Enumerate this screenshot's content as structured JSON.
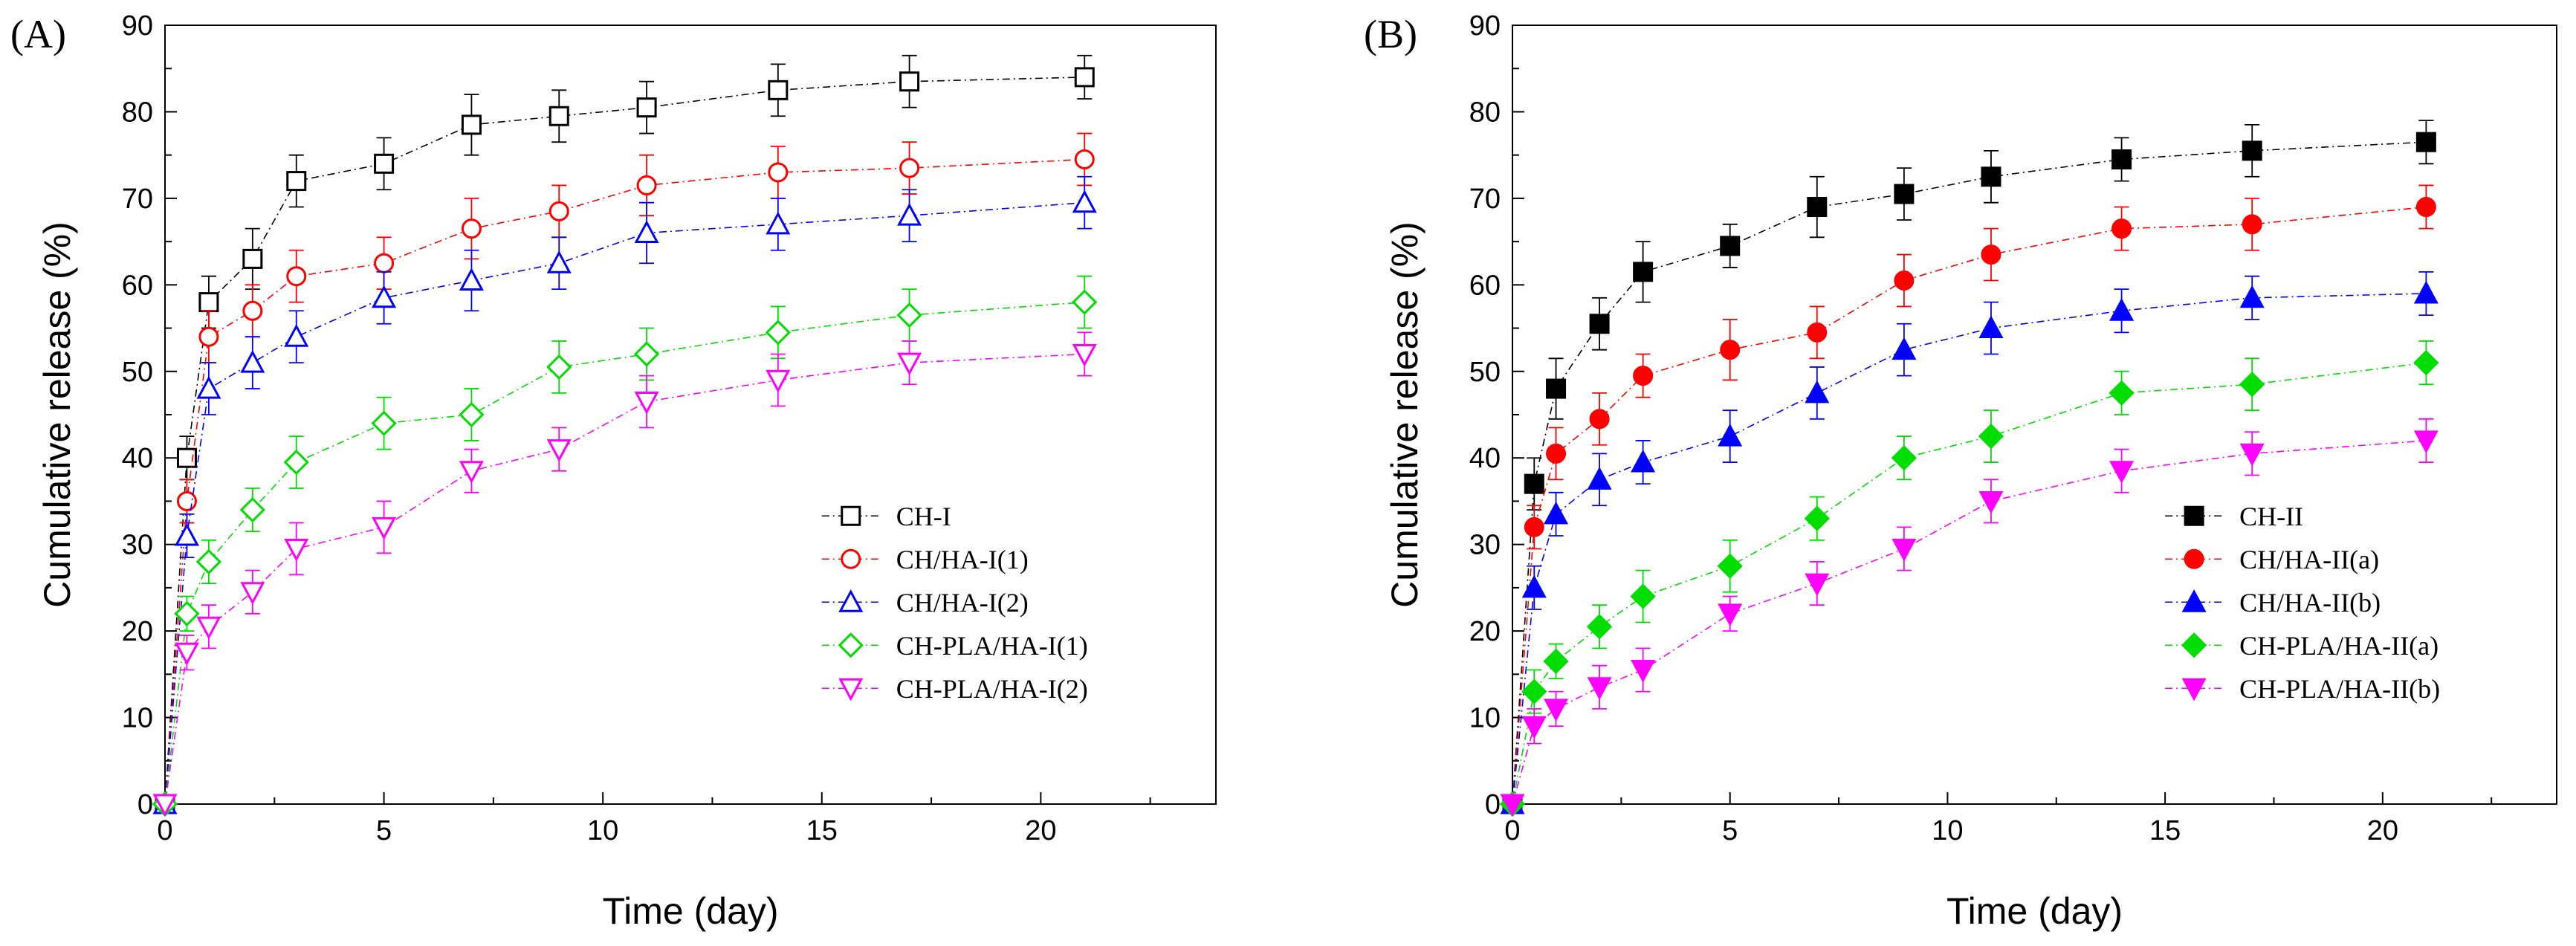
{
  "chart_data": [
    {
      "panel_label": "(A)",
      "type": "line",
      "xlabel": "Time (day)",
      "ylabel": "Cumulative release (%)",
      "xlim": [
        0,
        24
      ],
      "ylim": [
        0,
        90
      ],
      "x_ticks": [
        "0",
        "5",
        "10",
        "15",
        "20"
      ],
      "y_ticks": [
        "0",
        "10",
        "20",
        "30",
        "40",
        "50",
        "60",
        "70",
        "80",
        "90"
      ],
      "legend_position": "bottom-right",
      "x": [
        0,
        0.5,
        1,
        2,
        3,
        5,
        7,
        9,
        11,
        14,
        17,
        21
      ],
      "series": [
        {
          "name": "CH-I",
          "color": "#000000",
          "marker": "square-open",
          "values": [
            0,
            40,
            58,
            63,
            72,
            74,
            78.5,
            79.5,
            80.5,
            82.5,
            83.5,
            84
          ],
          "errors": [
            0,
            2.5,
            3,
            3.5,
            3,
            3,
            3.5,
            3,
            3,
            3,
            3,
            2.5
          ]
        },
        {
          "name": "CH/HA-I(1)",
          "color": "#ff0000",
          "marker": "circle-open",
          "values": [
            0,
            35,
            54,
            57,
            61,
            62.5,
            66.5,
            68.5,
            71.5,
            73,
            73.5,
            74.5
          ],
          "errors": [
            0,
            2.5,
            3,
            3,
            3,
            3,
            3.5,
            3,
            3.5,
            3,
            3,
            3
          ]
        },
        {
          "name": "CH/HA-I(2)",
          "color": "#0000ff",
          "marker": "triangle-up-open",
          "values": [
            0,
            31,
            48,
            51,
            54,
            58.5,
            60.5,
            62.5,
            66,
            67,
            68,
            69.5
          ],
          "errors": [
            0,
            2.5,
            3,
            3,
            3,
            3,
            3.5,
            3,
            3.5,
            3,
            3,
            3
          ]
        },
        {
          "name": "CH-PLA/HA-I(1)",
          "color": "#00dd00",
          "marker": "diamond-open",
          "values": [
            0,
            22,
            28,
            34,
            39.5,
            44,
            45,
            50.5,
            52,
            54.5,
            56.5,
            58
          ],
          "errors": [
            0,
            2,
            2.5,
            2.5,
            3,
            3,
            3,
            3,
            3,
            3,
            3,
            3
          ]
        },
        {
          "name": "CH-PLA/HA-I(2)",
          "color": "#ff00ff",
          "marker": "triangle-down-open",
          "values": [
            0,
            17.5,
            20.5,
            24.5,
            29.5,
            32,
            38.5,
            41,
            46.5,
            49,
            51,
            52
          ],
          "errors": [
            0,
            2,
            2.5,
            2.5,
            3,
            3,
            2.5,
            2.5,
            3,
            3,
            2.5,
            2.5
          ]
        }
      ]
    },
    {
      "panel_label": "(B)",
      "type": "line",
      "xlabel": "Time (day)",
      "ylabel": "Cumulative release (%)",
      "xlim": [
        0,
        24
      ],
      "ylim": [
        0,
        90
      ],
      "x_ticks": [
        "0",
        "5",
        "10",
        "15",
        "20"
      ],
      "y_ticks": [
        "0",
        "10",
        "20",
        "30",
        "40",
        "50",
        "60",
        "70",
        "80",
        "90"
      ],
      "legend_position": "bottom-right",
      "x": [
        0,
        0.5,
        1,
        2,
        3,
        5,
        7,
        9,
        11,
        14,
        17,
        21
      ],
      "series": [
        {
          "name": "CH-II",
          "color": "#000000",
          "marker": "square-filled",
          "values": [
            0,
            37,
            48,
            55.5,
            61.5,
            64.5,
            69,
            70.5,
            72.5,
            74.5,
            75.5,
            76.5
          ],
          "errors": [
            0,
            3,
            3.5,
            3,
            3.5,
            2.5,
            3.5,
            3,
            3,
            2.5,
            3,
            2.5
          ]
        },
        {
          "name": "CH/HA-II(a)",
          "color": "#ff0000",
          "marker": "circle-filled",
          "values": [
            0,
            32,
            40.5,
            44.5,
            49.5,
            52.5,
            54.5,
            60.5,
            63.5,
            66.5,
            67,
            69
          ],
          "errors": [
            0,
            2.5,
            3,
            3,
            2.5,
            3.5,
            3,
            3,
            3,
            2.5,
            3,
            2.5
          ]
        },
        {
          "name": "CH/HA-II(b)",
          "color": "#0000ff",
          "marker": "triangle-up-filled",
          "values": [
            0,
            25,
            33.5,
            37.5,
            39.5,
            42.5,
            47.5,
            52.5,
            55,
            57,
            58.5,
            59
          ],
          "errors": [
            0,
            2.5,
            2.5,
            3,
            2.5,
            3,
            3,
            3,
            3,
            2.5,
            2.5,
            2.5
          ]
        },
        {
          "name": "CH-PLA/HA-II(a)",
          "color": "#00dd00",
          "marker": "diamond-filled",
          "values": [
            0,
            13,
            16.5,
            20.5,
            24,
            27.5,
            33,
            40,
            42.5,
            47.5,
            48.5,
            51
          ],
          "errors": [
            0,
            2.5,
            2,
            2.5,
            3,
            3,
            2.5,
            2.5,
            3,
            2.5,
            3,
            2.5
          ]
        },
        {
          "name": "CH-PLA/HA-II(b)",
          "color": "#ff00ff",
          "marker": "triangle-down-filled",
          "values": [
            0,
            9,
            11,
            13.5,
            15.5,
            22,
            25.5,
            29.5,
            35,
            38.5,
            40.5,
            42
          ],
          "errors": [
            0,
            2,
            2,
            2.5,
            2.5,
            2,
            2.5,
            2.5,
            2.5,
            2.5,
            2.5,
            2.5
          ]
        }
      ]
    }
  ]
}
